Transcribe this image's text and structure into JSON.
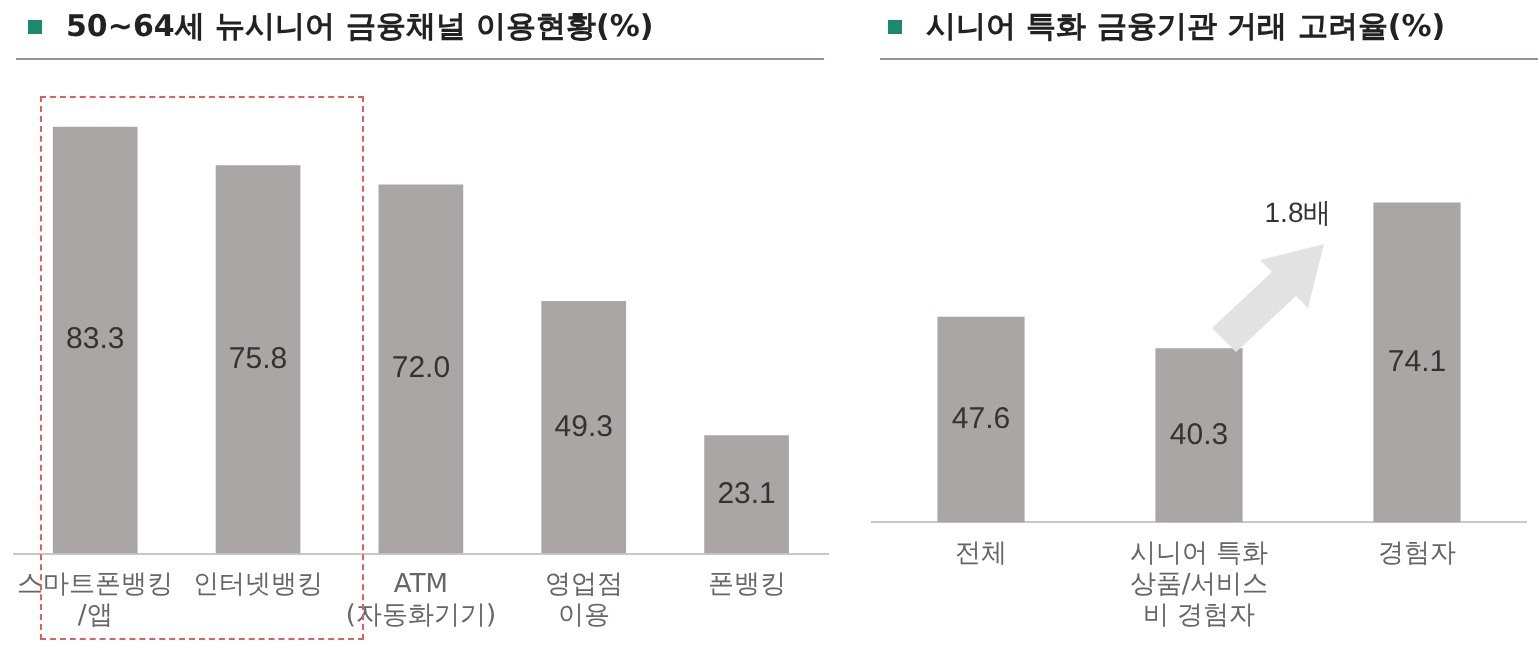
{
  "chart_data": [
    {
      "type": "bar",
      "title": "50~64세 뉴시니어 금융채널 이용현황(%)",
      "categories": [
        "스마트폰뱅킹\n/앱",
        "인터넷뱅킹",
        "ATM\n(자동화기기)",
        "영업점\n이용",
        "폰뱅킹"
      ],
      "values": [
        83.3,
        75.8,
        72.0,
        49.3,
        23.1
      ],
      "value_labels": [
        "83.3",
        "75.8",
        "72.0",
        "49.3",
        "23.1"
      ],
      "color": "#aaa6a5",
      "data_labels": true,
      "tick_labels": "x",
      "grid": false,
      "legend": false
    },
    {
      "type": "bar",
      "title": "시니어 특화 금융기관 거래 고려율(%)",
      "categories": [
        "전체",
        "시니어 특화\n상품/서비스\n비 경험자",
        "경험자"
      ],
      "values": [
        47.6,
        40.3,
        74.1
      ],
      "value_labels": [
        "47.6",
        "40.3",
        "74.1"
      ],
      "color": "#aaa6a5",
      "data_labels": true,
      "tick_labels": "x",
      "grid": false,
      "legend": false,
      "annotations": [
        "1.8배"
      ]
    }
  ]
}
